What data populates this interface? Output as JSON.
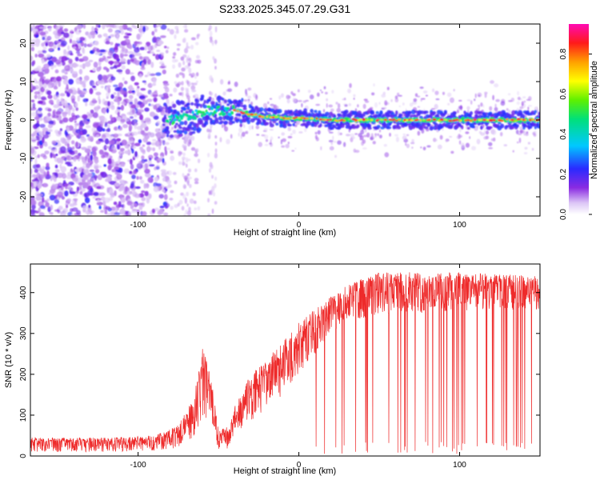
{
  "title": "S233.2025.345.07.29.G31",
  "colors": {
    "snr_line": "#ee2a2a",
    "axis": "#000000"
  },
  "chart_data": [
    {
      "type": "heatmap",
      "title": "S233.2025.345.07.29.G31",
      "xlabel": "Height of straight line (km)",
      "ylabel": "Frequency (Hz)",
      "xlim": [
        -167,
        150
      ],
      "ylim": [
        -25,
        25
      ],
      "xticks": [
        -100,
        0,
        100
      ],
      "xtick_labels": [
        "-100",
        "0",
        "100"
      ],
      "yticks": [
        -20,
        -10,
        0,
        10,
        20
      ],
      "ytick_labels": [
        "-20",
        "-10",
        "0",
        "10",
        "20"
      ],
      "colorbar": {
        "label": "Normalized spectral amplitude",
        "range": [
          0,
          0.95
        ],
        "ticks": [
          0.0,
          0.2,
          0.4,
          0.6,
          0.8
        ],
        "tick_labels": [
          "0.0",
          "0.2",
          "0.4",
          "0.6",
          "0.8"
        ],
        "colormap": "rainbow (white-violet-blue-cyan-green-yellow-red-magenta)"
      },
      "ridge_frequency_track": [
        {
          "x": -82,
          "y": 0
        },
        {
          "x": -70,
          "y": 0.5
        },
        {
          "x": -55,
          "y": 2.5
        },
        {
          "x": -40,
          "y": 2.5
        },
        {
          "x": -25,
          "y": 1
        },
        {
          "x": -10,
          "y": 0.5
        },
        {
          "x": 0,
          "y": 0.5
        },
        {
          "x": 20,
          "y": 0
        },
        {
          "x": 60,
          "y": 0
        },
        {
          "x": 100,
          "y": 0
        },
        {
          "x": 150,
          "y": 0
        }
      ]
    },
    {
      "type": "line",
      "xlabel": "Height of straight line (km)",
      "ylabel": "SNR (10 * v/v)",
      "xlim": [
        -167,
        150
      ],
      "ylim": [
        0,
        470
      ],
      "xticks": [
        -100,
        0,
        100
      ],
      "xtick_labels": [
        "-100",
        "0",
        "100"
      ],
      "yticks": [
        0,
        100,
        200,
        300,
        400
      ],
      "ytick_labels": [
        "0",
        "100",
        "200",
        "300",
        "400"
      ],
      "series": [
        {
          "name": "SNR",
          "envelope": [
            {
              "x": -167,
              "lo": 10,
              "hi": 45
            },
            {
              "x": -120,
              "lo": 10,
              "hi": 45
            },
            {
              "x": -90,
              "lo": 12,
              "hi": 50
            },
            {
              "x": -75,
              "lo": 20,
              "hi": 75
            },
            {
              "x": -65,
              "lo": 40,
              "hi": 150
            },
            {
              "x": -60,
              "lo": 100,
              "hi": 265
            },
            {
              "x": -55,
              "lo": 80,
              "hi": 210
            },
            {
              "x": -50,
              "lo": 10,
              "hi": 60
            },
            {
              "x": -43,
              "lo": 20,
              "hi": 80
            },
            {
              "x": -40,
              "lo": 50,
              "hi": 120
            },
            {
              "x": -30,
              "lo": 80,
              "hi": 200
            },
            {
              "x": -20,
              "lo": 120,
              "hi": 240
            },
            {
              "x": -10,
              "lo": 150,
              "hi": 280
            },
            {
              "x": 0,
              "lo": 200,
              "hi": 330
            },
            {
              "x": 10,
              "lo": 250,
              "hi": 360
            },
            {
              "x": 20,
              "lo": 300,
              "hi": 390
            },
            {
              "x": 30,
              "lo": 330,
              "hi": 420
            },
            {
              "x": 50,
              "lo": 345,
              "hi": 450
            },
            {
              "x": 100,
              "lo": 355,
              "hi": 450
            },
            {
              "x": 150,
              "lo": 360,
              "hi": 440
            }
          ],
          "dropouts": {
            "x_range": [
              10,
              150
            ],
            "min_value": 5,
            "note": "frequent drops to near zero"
          }
        }
      ]
    }
  ]
}
